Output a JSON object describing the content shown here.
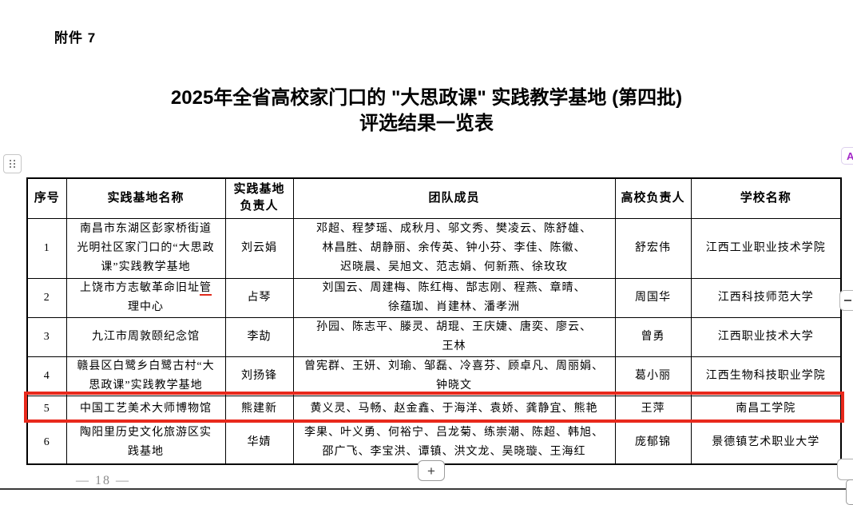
{
  "colors": {
    "highlight_box": "#e8291c",
    "proofread_underline": "#e02b1d"
  },
  "page": {
    "attachment_label": "附件 7",
    "title_line1": "2025年全省高校家门口的 \"大思政课\" 实践教学基地 (第四批)",
    "title_line2": "评选结果一览表",
    "page_number": "— 18 —",
    "add_button_label": "+",
    "floating_a_button_label": "A"
  },
  "table": {
    "headers": [
      "序号",
      "实践基地名称",
      "实践基地\n负责人",
      "团队成员",
      "高校负责人",
      "学校名称"
    ],
    "rows": [
      {
        "no": "1",
        "base_name": [
          {
            "t": "南昌市东湖区彭家桥街道\n光明社区家门口的“大思政\n课”实践教学基地"
          }
        ],
        "base_leader": "刘云娟",
        "members": "邓超、程梦瑶、成秋月、邬文秀、樊凌云、陈舒雄、\n林昌胜、胡静丽、余传英、钟小芬、李佳、陈徽、\n迟晓晨、吴旭文、范志娟、何新燕、徐玫玫",
        "university_leader": "舒宏伟",
        "school": "江西工业职业技术学院",
        "highlighted": false
      },
      {
        "no": "2",
        "base_name": [
          {
            "t": "上饶市方志敏革命旧址"
          },
          {
            "t": "管",
            "u": true
          },
          {
            "t": "\n理中心"
          }
        ],
        "base_leader": "占琴",
        "members": "刘国云、周建梅、陈红梅、郜志刚、程燕、章晴、\n徐蕴珈、肖建林、潘孝洲",
        "university_leader": "周国华",
        "school": "江西科技师范大学",
        "highlighted": false
      },
      {
        "no": "3",
        "base_name": [
          {
            "t": "九江市周敦颐纪念馆"
          }
        ],
        "base_leader": "李劼",
        "members": "孙园、陈志平、滕灵、胡琨、王庆婕、唐奕、廖云、\n王林",
        "university_leader": "曾勇",
        "school": "江西职业技术大学",
        "highlighted": false
      },
      {
        "no": "4",
        "base_name": [
          {
            "t": "赣县区白鹭乡白鹭古村“大\n思政课”实践教学基地"
          }
        ],
        "base_leader": "刘扬锋",
        "members": "曾宪群、王妍、刘瑜、邹磊、冷喜芬、顾卓凡、周丽娟、\n钟晓文",
        "university_leader": "葛小丽",
        "school": "江西生物科技职业学院",
        "highlighted": false
      },
      {
        "no": "5",
        "base_name": [
          {
            "t": "中国工艺美术大师博物馆"
          }
        ],
        "base_leader": "熊建新",
        "members": "黄义灵、马畅、赵金鑫、于海洋、袁娇、龚静宜、熊艳",
        "university_leader": "王萍",
        "school": "南昌工学院",
        "highlighted": true
      },
      {
        "no": "6",
        "base_name": [
          {
            "t": "陶阳里历史文化旅游区实\n践基地"
          }
        ],
        "base_leader": "华婧",
        "members": "李果、叶义勇、何裕宁、吕龙菊、练崇潮、陈超、韩旭、\n邵广飞、李宝洪、谭镇、洪文龙、吴晓璇、王海红",
        "university_leader": "庞郁锦",
        "school": "景德镇艺术职业大学",
        "highlighted": false
      }
    ]
  }
}
